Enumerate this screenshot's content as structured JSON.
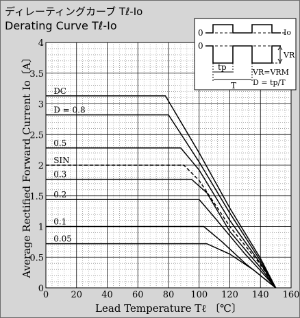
{
  "title_jp": "ディレーティングカーブ Tℓ-Io",
  "title_en": "Derating Curve Tℓ-Io",
  "chart_data": {
    "type": "line",
    "xlabel": "Lead Temperature  Tℓ 〔℃〕",
    "ylabel": "Average Rectified Forward Current  Io〔A〕",
    "xlim": [
      0,
      160
    ],
    "ylim": [
      0,
      4
    ],
    "x_ticks": [
      "0",
      "20",
      "40",
      "60",
      "80",
      "100",
      "120",
      "140",
      "160"
    ],
    "y_ticks": [
      "0",
      "0.5",
      "1",
      "1.5",
      "2",
      "2.5",
      "3",
      "3.5",
      "4"
    ],
    "grid": true,
    "series": [
      {
        "name": "DC",
        "dashed": false,
        "points": [
          [
            0,
            3.13
          ],
          [
            78,
            3.13
          ],
          [
            100,
            2.2
          ],
          [
            120,
            1.3
          ],
          [
            140,
            0.48
          ],
          [
            150,
            0
          ]
        ]
      },
      {
        "name": "D = 0.8",
        "dashed": false,
        "points": [
          [
            0,
            2.82
          ],
          [
            80,
            2.82
          ],
          [
            100,
            2.05
          ],
          [
            120,
            1.22
          ],
          [
            140,
            0.44
          ],
          [
            150,
            0
          ]
        ]
      },
      {
        "name": "0.5",
        "dashed": false,
        "points": [
          [
            0,
            2.28
          ],
          [
            88,
            2.28
          ],
          [
            100,
            1.92
          ],
          [
            120,
            1.1
          ],
          [
            140,
            0.4
          ],
          [
            150,
            0
          ]
        ]
      },
      {
        "name": "SIN",
        "dashed": true,
        "points": [
          [
            0,
            2.0
          ],
          [
            90,
            2.0
          ],
          [
            100,
            1.75
          ],
          [
            120,
            1.0
          ],
          [
            140,
            0.38
          ],
          [
            150,
            0
          ]
        ]
      },
      {
        "name": "0.3",
        "dashed": false,
        "points": [
          [
            0,
            1.77
          ],
          [
            95,
            1.77
          ],
          [
            105,
            1.55
          ],
          [
            120,
            0.92
          ],
          [
            140,
            0.33
          ],
          [
            150,
            0
          ]
        ]
      },
      {
        "name": "0.2",
        "dashed": false,
        "points": [
          [
            0,
            1.44
          ],
          [
            100,
            1.44
          ],
          [
            110,
            1.15
          ],
          [
            130,
            0.55
          ],
          [
            140,
            0.28
          ],
          [
            150,
            0
          ]
        ]
      },
      {
        "name": "0.1",
        "dashed": false,
        "points": [
          [
            0,
            1.0
          ],
          [
            103,
            1.0
          ],
          [
            115,
            0.75
          ],
          [
            130,
            0.4
          ],
          [
            140,
            0.2
          ],
          [
            150,
            0
          ]
        ]
      },
      {
        "name": "0.05",
        "dashed": false,
        "points": [
          [
            0,
            0.72
          ],
          [
            105,
            0.72
          ],
          [
            120,
            0.55
          ],
          [
            135,
            0.3
          ],
          [
            150,
            0
          ]
        ]
      }
    ],
    "inset": {
      "labels": {
        "io": "Io",
        "vr": "VR",
        "zero_top": "0",
        "zero_bottom": "0",
        "vr_eq": "VR=VRM",
        "d_eq": "D = tp/T",
        "tp": "tp",
        "T": "T"
      }
    }
  }
}
